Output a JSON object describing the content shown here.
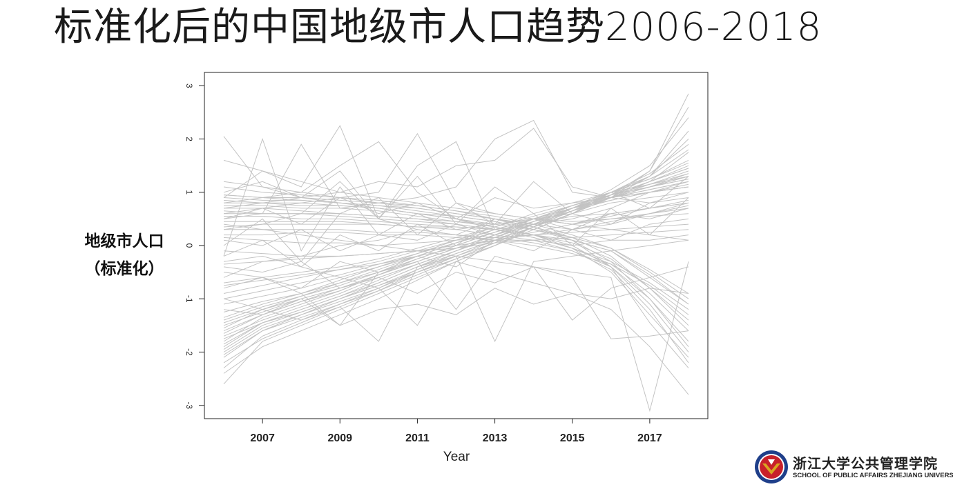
{
  "slide": {
    "title": "标准化后的中国地级市人口趋势2006-2018"
  },
  "logo": {
    "text_cn": "浙江大学公共管理学院",
    "text_en": "SCHOOL OF PUBLIC AFFAIRS  ZHEJIANG UNIVERSITY",
    "colors": {
      "seal_blue": "#1f3f8a",
      "seal_red": "#c8202a",
      "seal_gold": "#d9a520"
    }
  },
  "chart_data": {
    "type": "line",
    "title": "",
    "xlabel": "Year",
    "ylabel_lines": [
      "地级市人口",
      "（标准化）"
    ],
    "x_ticks": [
      2007,
      2009,
      2011,
      2013,
      2015,
      2017
    ],
    "y_ticks": [
      "-3",
      "-2",
      "-1",
      "0",
      "1",
      "2",
      "3"
    ],
    "xlim": [
      2005.5,
      2018.5
    ],
    "ylim": [
      -3.25,
      3.25
    ],
    "line_color": "#c3c3c3",
    "grid": false,
    "legend": "none",
    "x": [
      2006,
      2007,
      2008,
      2009,
      2010,
      2011,
      2012,
      2013,
      2014,
      2015,
      2016,
      2017,
      2018
    ],
    "series": [
      {
        "values": [
          -1.85,
          -1.45,
          -1.2,
          -0.95,
          -0.65,
          -0.35,
          -0.1,
          0.15,
          0.4,
          0.65,
          0.95,
          1.15,
          1.35
        ]
      },
      {
        "values": [
          -2.1,
          -1.6,
          -1.3,
          -1.0,
          -0.7,
          -0.4,
          -0.15,
          0.1,
          0.4,
          0.7,
          0.95,
          1.2,
          1.5
        ]
      },
      {
        "values": [
          -1.6,
          -1.3,
          -1.05,
          -0.85,
          -0.55,
          -0.3,
          -0.05,
          0.2,
          0.45,
          0.7,
          0.9,
          1.1,
          1.25
        ]
      },
      {
        "values": [
          -2.3,
          -1.7,
          -1.4,
          -1.1,
          -0.8,
          -0.45,
          -0.2,
          0.1,
          0.35,
          0.65,
          1.0,
          1.25,
          1.6
        ]
      },
      {
        "values": [
          -1.4,
          -1.15,
          -0.95,
          -0.75,
          -0.5,
          -0.25,
          0.0,
          0.25,
          0.5,
          0.7,
          0.9,
          1.05,
          1.2
        ]
      },
      {
        "values": [
          -1.95,
          -1.5,
          -1.25,
          -1.0,
          -0.75,
          -0.45,
          -0.15,
          0.1,
          0.35,
          0.65,
          0.9,
          1.15,
          1.4
        ]
      },
      {
        "values": [
          -1.7,
          -1.4,
          -1.15,
          -0.9,
          -0.6,
          -0.35,
          -0.1,
          0.2,
          0.45,
          0.7,
          0.95,
          1.2,
          1.45
        ]
      },
      {
        "values": [
          -1.25,
          -1.05,
          -0.9,
          -0.7,
          -0.45,
          -0.2,
          0.05,
          0.3,
          0.5,
          0.75,
          0.95,
          1.1,
          1.3
        ]
      },
      {
        "values": [
          -2.0,
          -1.55,
          -1.3,
          -1.05,
          -0.8,
          -0.5,
          -0.2,
          0.05,
          0.35,
          0.6,
          0.9,
          1.2,
          1.75
        ]
      },
      {
        "values": [
          -1.5,
          -1.25,
          -1.0,
          -0.8,
          -0.55,
          -0.3,
          -0.05,
          0.2,
          0.45,
          0.65,
          0.9,
          1.1,
          1.3
        ]
      },
      {
        "values": [
          -1.1,
          -0.95,
          -0.8,
          -0.6,
          -0.4,
          -0.2,
          0.05,
          0.3,
          0.5,
          0.7,
          0.85,
          1.0,
          1.1
        ]
      },
      {
        "values": [
          -1.8,
          -1.35,
          -1.1,
          -0.85,
          -0.55,
          -0.25,
          0.0,
          0.25,
          0.5,
          0.75,
          1.0,
          1.25,
          1.55
        ]
      },
      {
        "values": [
          -2.2,
          -1.75,
          -1.45,
          -1.15,
          -0.85,
          -0.5,
          -0.25,
          0.05,
          0.35,
          0.6,
          0.9,
          1.3,
          2.0
        ]
      },
      {
        "values": [
          -1.55,
          -1.2,
          -0.95,
          -0.7,
          -0.5,
          -0.25,
          0.0,
          0.25,
          0.45,
          0.7,
          0.95,
          1.2,
          1.45
        ]
      },
      {
        "values": [
          -0.9,
          -0.75,
          -0.6,
          -0.45,
          -0.3,
          -0.1,
          0.1,
          0.3,
          0.5,
          0.7,
          0.9,
          1.05,
          1.2
        ]
      },
      {
        "values": [
          -1.35,
          -1.1,
          -0.9,
          -0.65,
          -0.4,
          -0.15,
          0.1,
          0.35,
          0.6,
          0.8,
          1.0,
          1.15,
          1.3
        ]
      },
      {
        "values": [
          -1.0,
          -0.85,
          -0.7,
          -0.55,
          -0.35,
          -0.15,
          0.05,
          0.25,
          0.45,
          0.65,
          0.85,
          1.0,
          1.15
        ]
      },
      {
        "values": [
          -1.9,
          -1.45,
          -1.2,
          -0.95,
          -0.7,
          -0.4,
          -0.1,
          0.15,
          0.45,
          0.75,
          1.0,
          1.35,
          1.9
        ]
      },
      {
        "values": [
          -0.7,
          -0.6,
          -0.5,
          -0.4,
          -0.25,
          -0.05,
          0.15,
          0.35,
          0.55,
          0.75,
          0.95,
          1.1,
          1.25
        ]
      },
      {
        "values": [
          -1.65,
          -1.3,
          -1.05,
          -0.8,
          -0.55,
          -0.3,
          -0.05,
          0.2,
          0.4,
          0.65,
          0.9,
          1.1,
          1.35
        ]
      },
      {
        "values": [
          0.95,
          0.9,
          0.85,
          0.8,
          0.75,
          0.65,
          0.55,
          0.45,
          0.3,
          0.1,
          -0.3,
          -1.0,
          -1.9
        ]
      },
      {
        "values": [
          0.85,
          0.8,
          0.8,
          0.75,
          0.7,
          0.6,
          0.5,
          0.35,
          0.2,
          -0.05,
          -0.5,
          -1.3,
          -2.1
        ]
      },
      {
        "values": [
          0.75,
          0.75,
          0.7,
          0.7,
          0.65,
          0.55,
          0.45,
          0.35,
          0.2,
          0.0,
          -0.4,
          -1.1,
          -2.0
        ]
      },
      {
        "values": [
          0.6,
          0.6,
          0.6,
          0.55,
          0.5,
          0.45,
          0.4,
          0.3,
          0.15,
          -0.05,
          -0.35,
          -0.9,
          -1.6
        ]
      },
      {
        "values": [
          0.9,
          0.85,
          0.85,
          0.8,
          0.75,
          0.7,
          0.6,
          0.5,
          0.35,
          0.15,
          -0.2,
          -0.8,
          -1.5
        ]
      },
      {
        "values": [
          0.45,
          0.45,
          0.45,
          0.45,
          0.4,
          0.35,
          0.3,
          0.2,
          0.1,
          -0.1,
          -0.45,
          -1.2,
          -2.2
        ]
      },
      {
        "values": [
          0.7,
          0.7,
          0.65,
          0.6,
          0.55,
          0.5,
          0.4,
          0.3,
          0.15,
          -0.05,
          -0.3,
          -0.7,
          -1.2
        ]
      },
      {
        "values": [
          0.3,
          0.3,
          0.3,
          0.3,
          0.25,
          0.25,
          0.2,
          0.15,
          0.05,
          -0.1,
          -0.4,
          -1.0,
          -1.8
        ]
      },
      {
        "values": [
          0.8,
          0.8,
          0.75,
          0.75,
          0.7,
          0.6,
          0.55,
          0.45,
          0.3,
          0.1,
          -0.1,
          -0.6,
          -1.1
        ]
      },
      {
        "values": [
          0.55,
          0.55,
          0.5,
          0.5,
          0.45,
          0.4,
          0.35,
          0.3,
          0.2,
          0.05,
          -0.25,
          -0.8,
          -1.4
        ]
      },
      {
        "values": [
          0.2,
          0.2,
          0.25,
          0.25,
          0.2,
          0.2,
          0.15,
          0.1,
          0.0,
          -0.15,
          -0.35,
          -0.75,
          -1.3
        ]
      },
      {
        "values": [
          0.95,
          0.9,
          0.9,
          0.85,
          0.8,
          0.75,
          0.65,
          0.55,
          0.4,
          0.2,
          -0.05,
          -0.5,
          -1.0
        ]
      },
      {
        "values": [
          1.1,
          1.0,
          0.95,
          0.9,
          0.85,
          0.75,
          0.65,
          0.5,
          0.35,
          0.1,
          -0.4,
          -1.45,
          -2.3
        ]
      },
      {
        "values": [
          0.65,
          0.6,
          0.6,
          0.6,
          0.55,
          0.5,
          0.45,
          0.4,
          0.3,
          0.15,
          -0.05,
          -0.45,
          -0.9
        ]
      },
      {
        "values": [
          0.35,
          0.4,
          0.4,
          0.4,
          0.4,
          0.35,
          0.35,
          0.3,
          0.2,
          0.1,
          -0.1,
          -0.55,
          -1.1
        ]
      },
      {
        "values": [
          1.0,
          1.2,
          0.9,
          1.4,
          0.5,
          1.3,
          0.4,
          1.1,
          0.6,
          0.0,
          0.7,
          0.2,
          0.9
        ]
      },
      {
        "values": [
          0.0,
          0.5,
          -0.3,
          0.6,
          0.9,
          0.2,
          0.8,
          0.4,
          1.2,
          0.6,
          1.0,
          0.7,
          1.3
        ]
      },
      {
        "values": [
          0.5,
          0.7,
          0.4,
          0.9,
          0.6,
          0.8,
          0.5,
          0.9,
          0.7,
          0.8,
          0.9,
          1.0,
          1.1
        ]
      },
      {
        "values": [
          -0.2,
          0.1,
          -0.4,
          0.2,
          -0.1,
          0.4,
          0.0,
          0.5,
          0.3,
          0.6,
          0.4,
          0.8,
          0.9
        ]
      },
      {
        "values": [
          -0.6,
          -0.3,
          -0.2,
          0.0,
          0.1,
          0.3,
          0.2,
          0.5,
          0.4,
          0.55,
          0.6,
          0.7,
          0.8
        ]
      },
      {
        "values": [
          -0.5,
          -0.6,
          -0.8,
          -0.3,
          -0.5,
          -0.2,
          -0.4,
          0.1,
          -0.1,
          0.3,
          0.1,
          0.4,
          0.5
        ]
      },
      {
        "values": [
          0.1,
          0.0,
          0.3,
          -0.1,
          0.2,
          0.1,
          0.4,
          0.2,
          0.5,
          0.3,
          0.6,
          0.5,
          0.7
        ]
      },
      {
        "values": [
          2.05,
          1.1,
          0.9,
          0.8,
          0.7,
          0.6,
          0.5,
          0.4,
          0.5,
          0.6,
          0.8,
          0.9,
          1.0
        ]
      },
      {
        "values": [
          1.6,
          1.4,
          1.2,
          1.0,
          0.9,
          0.8,
          0.7,
          0.6,
          0.5,
          0.4,
          0.3,
          0.2,
          0.1
        ]
      },
      {
        "values": [
          -0.2,
          2.0,
          -0.1,
          1.1,
          0.2,
          0.6,
          0.3,
          0.4,
          0.5,
          0.45,
          0.5,
          0.55,
          0.6
        ]
      },
      {
        "values": [
          0.9,
          1.4,
          1.1,
          2.25,
          0.5,
          0.3,
          0.2,
          0.1,
          0.1,
          0.0,
          0.1,
          0.1,
          0.2
        ]
      },
      {
        "values": [
          0.5,
          0.6,
          1.9,
          0.7,
          0.8,
          0.9,
          1.1,
          2.0,
          2.35,
          1.0,
          0.9,
          0.8,
          1.0
        ]
      },
      {
        "values": [
          0.3,
          0.4,
          0.6,
          1.2,
          0.5,
          1.5,
          1.95,
          0.3,
          0.5,
          0.4,
          0.6,
          0.7,
          0.8
        ]
      },
      {
        "values": [
          0.8,
          0.9,
          1.0,
          1.5,
          1.95,
          1.0,
          0.5,
          0.3,
          0.4,
          0.5,
          0.7,
          1.0,
          1.2
        ]
      },
      {
        "values": [
          0.6,
          0.7,
          0.8,
          0.9,
          1.0,
          2.1,
          0.8,
          0.6,
          0.5,
          0.4,
          0.5,
          0.6,
          0.7
        ]
      },
      {
        "values": [
          0.7,
          0.8,
          0.9,
          1.0,
          1.2,
          1.1,
          1.5,
          1.6,
          2.2,
          1.1,
          0.9,
          1.0,
          1.1
        ]
      },
      {
        "values": [
          -1.2,
          -1.3,
          -1.0,
          -1.5,
          -1.2,
          -1.1,
          -1.3,
          -0.8,
          -1.1,
          -0.9,
          -1.0,
          -0.8,
          -0.9
        ]
      },
      {
        "values": [
          -1.0,
          -1.2,
          -1.4,
          -1.15,
          -1.8,
          -0.4,
          -0.2,
          -1.8,
          -0.3,
          -0.2,
          -0.1,
          0.0,
          0.1
        ]
      },
      {
        "values": [
          -0.8,
          -0.6,
          -0.9,
          -1.5,
          -0.5,
          -0.3,
          -1.2,
          -0.2,
          -0.4,
          -1.4,
          -0.8,
          -0.6,
          -0.4
        ]
      },
      {
        "values": [
          -0.4,
          -0.5,
          -0.3,
          -0.8,
          -0.6,
          -0.9,
          -0.5,
          -0.7,
          -0.4,
          -0.6,
          -1.75,
          -1.7,
          -1.6
        ]
      },
      {
        "values": [
          0.4,
          0.3,
          0.2,
          0.1,
          0.0,
          -0.1,
          -0.2,
          -0.3,
          -0.4,
          -0.5,
          -0.6,
          -3.1,
          -0.3
        ]
      },
      {
        "values": [
          -0.3,
          -0.2,
          -0.4,
          -0.6,
          -0.8,
          -1.5,
          -0.3,
          -0.5,
          -0.7,
          -0.9,
          -1.2,
          -1.9,
          -2.8
        ]
      },
      {
        "values": [
          1.2,
          1.1,
          1.0,
          0.9,
          0.8,
          0.7,
          0.6,
          0.5,
          0.4,
          0.3,
          0.4,
          0.6,
          0.8
        ]
      },
      {
        "values": [
          -2.6,
          -1.8,
          -1.5,
          -1.2,
          -0.9,
          -0.6,
          -0.3,
          0.0,
          0.3,
          0.6,
          0.9,
          1.4,
          2.85
        ]
      },
      {
        "values": [
          -2.4,
          -1.9,
          -1.6,
          -1.3,
          -1.0,
          -0.65,
          -0.3,
          0.0,
          0.35,
          0.7,
          1.05,
          1.5,
          2.4
        ]
      },
      {
        "values": [
          -1.75,
          -1.45,
          -1.25,
          -1.0,
          -0.75,
          -0.5,
          -0.25,
          0.0,
          0.3,
          0.6,
          0.95,
          1.3,
          2.15
        ]
      },
      {
        "values": [
          -1.45,
          -1.2,
          -1.0,
          -0.8,
          -0.6,
          -0.35,
          -0.1,
          0.15,
          0.4,
          0.7,
          1.0,
          1.3,
          1.8
        ]
      },
      {
        "values": [
          -2.05,
          -1.6,
          -1.35,
          -1.1,
          -0.85,
          -0.55,
          -0.25,
          0.05,
          0.35,
          0.65,
          0.95,
          1.4,
          2.6
        ]
      },
      {
        "values": [
          -0.1,
          -0.15,
          -0.2,
          -0.2,
          -0.15,
          -0.1,
          -0.05,
          0.05,
          0.1,
          0.15,
          0.2,
          0.25,
          0.3
        ]
      },
      {
        "values": [
          0.15,
          0.1,
          0.05,
          0.05,
          0.0,
          0.05,
          0.1,
          0.15,
          0.2,
          0.25,
          0.3,
          0.35,
          0.4
        ]
      },
      {
        "values": [
          -0.35,
          -0.3,
          -0.25,
          -0.2,
          -0.15,
          -0.1,
          0.0,
          0.1,
          0.2,
          0.3,
          0.45,
          0.6,
          0.75
        ]
      },
      {
        "values": [
          -0.75,
          -0.65,
          -0.55,
          -0.45,
          -0.35,
          -0.2,
          -0.05,
          0.1,
          0.25,
          0.4,
          0.55,
          0.7,
          0.85
        ]
      }
    ]
  }
}
